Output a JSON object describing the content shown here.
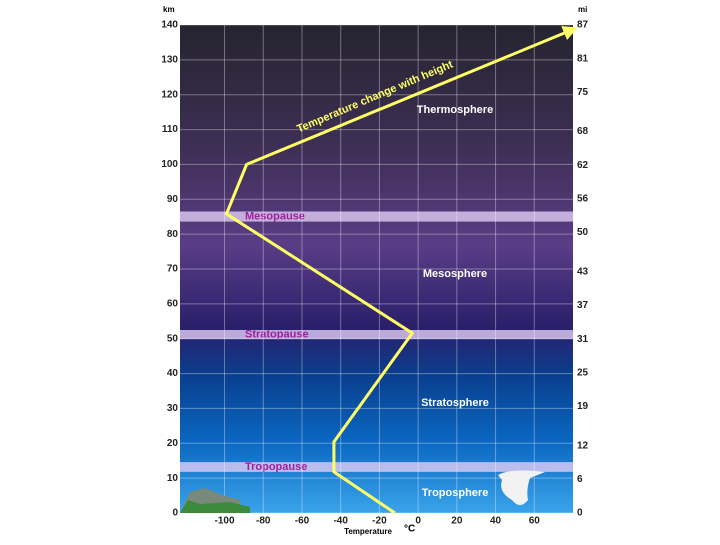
{
  "chart_data": {
    "type": "line",
    "ylabel": "km",
    "y2label": "mi",
    "xlabel": "Temperature",
    "xunit": "°C",
    "annotation": "Temperature change with height",
    "x": [
      -12,
      -43.5,
      -43.5,
      -3,
      -99,
      -88.6,
      79
    ],
    "values": [
      0,
      11.8,
      20.4,
      51.6,
      85.8,
      100,
      138.5
    ],
    "color": "#ffff66",
    "xlim": [
      -123,
      80
    ],
    "xticks": [
      -100,
      -80,
      -60,
      -40,
      -20,
      0,
      20,
      40,
      60
    ],
    "ylim": [
      0,
      140
    ],
    "yticks": [
      0,
      10,
      20,
      30,
      40,
      50,
      60,
      70,
      80,
      90,
      100,
      110,
      120,
      130,
      140
    ],
    "y2lim": [
      0,
      87
    ],
    "y2ticks": [
      0,
      6,
      12,
      19,
      25,
      31,
      37,
      43,
      50,
      56,
      62,
      68,
      75,
      81,
      87
    ],
    "grid": true,
    "bands": [
      {
        "label": "Mesopause",
        "range": [
          83.6,
          86.5
        ]
      },
      {
        "label": "Stratopause",
        "range": [
          49.9,
          52.5
        ]
      },
      {
        "label": "Tropopause",
        "range": [
          11.8,
          14.6
        ]
      }
    ],
    "regions": [
      "Thermosphere",
      "Mesosphere",
      "Stratosphere",
      "Troposphere"
    ]
  }
}
